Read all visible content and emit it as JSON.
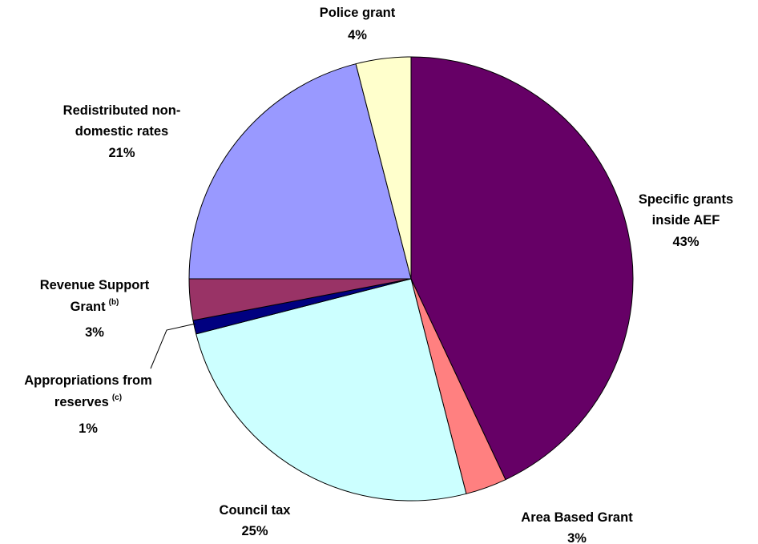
{
  "chart_data": {
    "type": "pie",
    "slices": [
      {
        "name": "Specific grants inside AEF",
        "value": 43,
        "label": "43%",
        "color": "#660066"
      },
      {
        "name": "Area Based Grant",
        "value": 3,
        "label": "3%",
        "color": "#ff8080"
      },
      {
        "name": "Council tax",
        "value": 25,
        "label": "25%",
        "color": "#ccffff"
      },
      {
        "name": "Appropriations from reserves (c)",
        "value": 1,
        "label": "1%",
        "color": "#000080"
      },
      {
        "name": "Revenue Support Grant (b)",
        "value": 3,
        "label": "3%",
        "color": "#993366"
      },
      {
        "name": "Redistributed non-domestic rates",
        "value": 21,
        "label": "21%",
        "color": "#9999ff"
      },
      {
        "name": "Police grant",
        "value": 4,
        "label": "4%",
        "color": "#ffffcc"
      }
    ]
  },
  "labels": {
    "specific": {
      "line1": "Specific grants",
      "line2": "inside AEF",
      "pct": "43%"
    },
    "area": {
      "line1": "Area Based Grant",
      "pct": "3%"
    },
    "council": {
      "line1": "Council tax",
      "pct": "25%"
    },
    "approp": {
      "line1": "Appropriations from",
      "line2": "reserves",
      "sup": "(c)",
      "pct": "1%"
    },
    "revenue": {
      "line1": "Revenue Support",
      "line2": "Grant",
      "sup": "(b)",
      "pct": "3%"
    },
    "redistributed": {
      "line1": "Redistributed non-",
      "line2": "domestic rates",
      "pct": "21%"
    },
    "police": {
      "line1": "Police grant",
      "pct": "4%"
    }
  }
}
